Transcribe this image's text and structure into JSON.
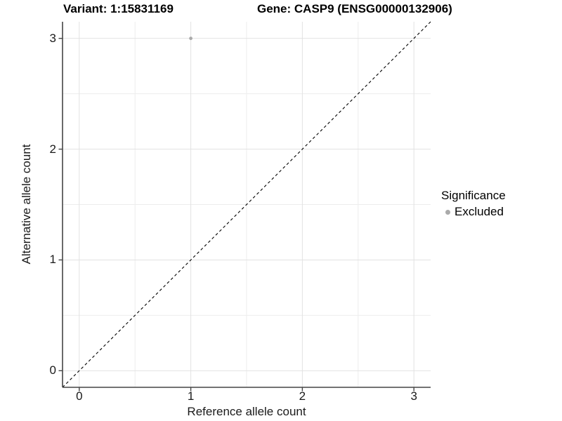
{
  "chart_data": {
    "type": "scatter",
    "titles": {
      "variant": "Variant: 1:15831169",
      "gene": "Gene: CASP9 (ENSG00000132906)"
    },
    "xlabel": "Reference allele count",
    "ylabel": "Alternative allele count",
    "xlim": [
      -0.15,
      3.15
    ],
    "ylim": [
      -0.15,
      3.15
    ],
    "x_ticks": [
      0,
      1,
      2,
      3
    ],
    "y_ticks": [
      0,
      1,
      2,
      3
    ],
    "x_minor_ticks": [
      0.5,
      1.5,
      2.5
    ],
    "y_minor_ticks": [
      0.5,
      1.5,
      2.5
    ],
    "grid": true,
    "series": [
      {
        "name": "Excluded",
        "color": "#aaaaaa",
        "marker": "circle",
        "points": [
          {
            "x": 1,
            "y": 3
          }
        ]
      }
    ],
    "reference_line": {
      "type": "identity",
      "style": "dashed",
      "color": "#000000"
    },
    "legend": {
      "title": "Significance",
      "position": "right",
      "entries": [
        {
          "label": "Excluded",
          "color": "#aaaaaa",
          "marker": "circle"
        }
      ]
    }
  },
  "colors": {
    "background": "#ffffff",
    "grid_major": "#e2e2e2",
    "grid_minor": "#ededed",
    "axis_line": "#454545",
    "tick_label": "#1a1a1a",
    "title_text": "#000000"
  }
}
